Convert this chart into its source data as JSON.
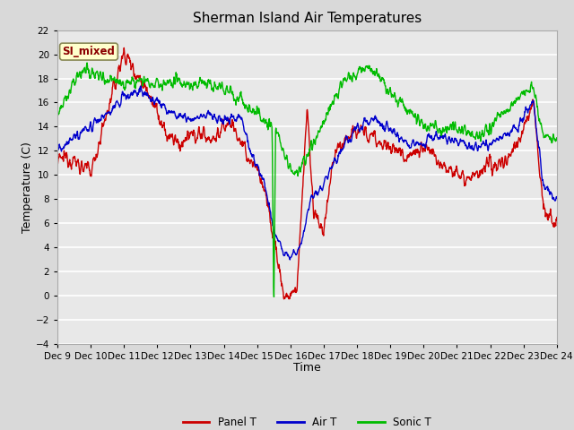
{
  "title": "Sherman Island Air Temperatures",
  "xlabel": "Time",
  "ylabel": "Temperature (C)",
  "ylim": [
    -4,
    22
  ],
  "yticks": [
    -4,
    -2,
    0,
    2,
    4,
    6,
    8,
    10,
    12,
    14,
    16,
    18,
    20,
    22
  ],
  "x_tick_labels": [
    "Dec 9",
    "Dec 10",
    "Dec 11",
    "Dec 12",
    "Dec 13",
    "Dec 14",
    "Dec 15",
    "Dec 16",
    "Dec 17",
    "Dec 18",
    "Dec 19",
    "Dec 20",
    "Dec 21",
    "Dec 22",
    "Dec 23",
    "Dec 24"
  ],
  "background_color": "#d9d9d9",
  "plot_bg_color": "#e8e8e8",
  "panel_color": "#cc0000",
  "air_color": "#0000cc",
  "sonic_color": "#00bb00",
  "annotation_text": "SI_mixed",
  "annotation_color": "#8b0000",
  "annotation_bg": "#ffffcc",
  "legend_items": [
    "Panel T",
    "Air T",
    "Sonic T"
  ],
  "title_fontsize": 11,
  "axis_label_fontsize": 9,
  "tick_fontsize": 7.5
}
